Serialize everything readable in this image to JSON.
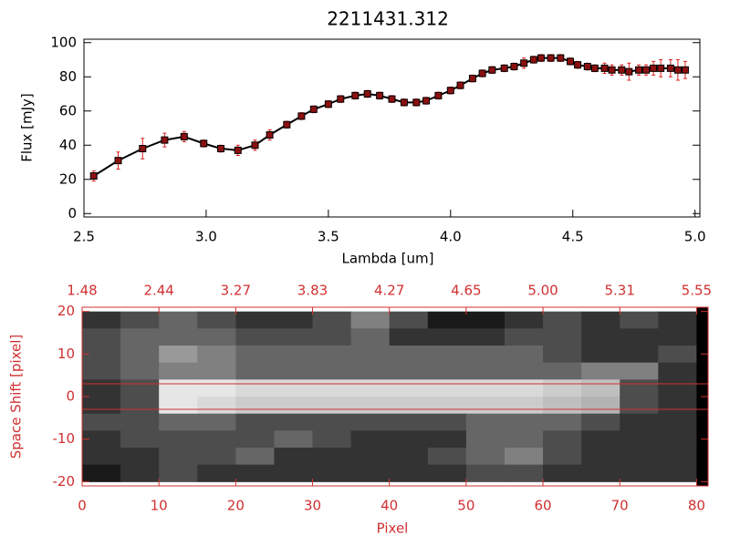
{
  "chart_data": [
    {
      "type": "line",
      "title": "2211431.312",
      "xlabel": "Lambda [um]",
      "ylabel": "Flux [mJy]",
      "x": [
        2.54,
        2.64,
        2.74,
        2.83,
        2.91,
        2.99,
        3.06,
        3.13,
        3.2,
        3.26,
        3.33,
        3.39,
        3.44,
        3.5,
        3.55,
        3.61,
        3.66,
        3.71,
        3.76,
        3.81,
        3.86,
        3.9,
        3.95,
        4.0,
        4.04,
        4.09,
        4.13,
        4.17,
        4.22,
        4.26,
        4.3,
        4.34,
        4.37,
        4.41,
        4.45,
        4.49,
        4.52,
        4.56,
        4.59,
        4.63,
        4.66,
        4.7,
        4.73,
        4.77,
        4.8,
        4.83,
        4.86,
        4.9,
        4.93,
        4.96
      ],
      "series": [
        {
          "name": "Flux",
          "color": "#000000",
          "marker_color": "#8b1010",
          "error_color": "#e02020",
          "values": [
            22,
            31,
            38,
            43,
            45,
            41,
            38,
            37,
            40,
            46,
            52,
            57,
            61,
            64,
            67,
            69,
            70,
            69,
            67,
            65,
            65,
            66,
            69,
            72,
            75,
            79,
            82,
            84,
            85,
            86,
            88,
            90,
            91,
            91,
            91,
            89,
            87,
            86,
            85,
            85,
            84,
            84,
            83,
            84,
            84,
            85,
            85,
            85,
            84,
            84
          ],
          "errors": [
            3,
            5,
            6,
            4,
            3,
            2,
            2,
            3,
            3,
            3,
            2,
            2,
            2,
            2,
            2,
            2,
            2,
            2,
            2,
            2,
            2,
            2,
            2,
            2,
            2,
            2,
            2,
            2,
            2,
            2,
            3,
            2,
            2,
            2,
            2,
            2,
            2,
            2,
            2,
            3,
            3,
            3,
            5,
            3,
            3,
            4,
            5,
            5,
            6,
            5
          ]
        }
      ],
      "xlim": [
        2.5,
        5.02
      ],
      "ylim": [
        -2,
        102
      ],
      "xticks": [
        2.5,
        {
          "value": 3,
          "label": "3.0"
        },
        3.5,
        {
          "value": 4,
          "label": "4.0"
        },
        4.5,
        {
          "value": 5,
          "label": "5.0"
        }
      ],
      "yticks": [
        0,
        20,
        40,
        60,
        80,
        100
      ]
    },
    {
      "type": "image",
      "xlabel": "Pixel",
      "ylabel": "Space Shift [pixel]",
      "color": "#d03030",
      "xlim": [
        0,
        81.5
      ],
      "ylim": [
        -21,
        21
      ],
      "xticks": [
        0,
        10,
        20,
        30,
        40,
        50,
        60,
        70,
        80
      ],
      "x2ticks": [
        {
          "value": 0,
          "label": "1.48"
        },
        {
          "value": 10,
          "label": "2.44"
        },
        {
          "value": 20,
          "label": "3.27"
        },
        {
          "value": 30,
          "label": "3.83"
        },
        {
          "value": 40,
          "label": "4.27"
        },
        {
          "value": 50,
          "label": "4.65"
        },
        {
          "value": 60,
          "label": "5.00"
        },
        {
          "value": 70,
          "label": "5.31"
        },
        {
          "value": 80,
          "label": "5.55"
        }
      ],
      "yticks": [
        -20,
        -10,
        0,
        10,
        20
      ],
      "aperture": [
        -3,
        3
      ],
      "image_x": [
        0,
        5,
        10,
        15,
        20,
        25,
        30,
        35,
        40,
        45,
        50,
        55,
        60,
        65,
        70,
        75,
        80
      ],
      "image_y": [
        20,
        16,
        12,
        8,
        4,
        0,
        -4,
        -8,
        -12,
        -16,
        -20
      ],
      "image": [
        [
          0.2,
          0.3,
          0.4,
          0.3,
          0.2,
          0.2,
          0.3,
          0.5,
          0.3,
          0.1,
          0.1,
          0.2,
          0.3,
          0.2,
          0.3,
          0.2
        ],
        [
          0.3,
          0.4,
          0.4,
          0.4,
          0.3,
          0.3,
          0.3,
          0.4,
          0.2,
          0.2,
          0.2,
          0.3,
          0.3,
          0.2,
          0.2,
          0.2
        ],
        [
          0.3,
          0.4,
          0.6,
          0.5,
          0.4,
          0.4,
          0.4,
          0.4,
          0.4,
          0.4,
          0.4,
          0.4,
          0.3,
          0.2,
          0.2,
          0.3
        ],
        [
          0.3,
          0.4,
          0.5,
          0.5,
          0.4,
          0.4,
          0.4,
          0.4,
          0.4,
          0.4,
          0.4,
          0.4,
          0.4,
          0.5,
          0.5,
          0.2
        ],
        [
          0.2,
          0.3,
          0.9,
          0.9,
          0.85,
          0.85,
          0.85,
          0.85,
          0.85,
          0.85,
          0.85,
          0.85,
          0.8,
          0.75,
          0.3,
          0.2
        ],
        [
          0.2,
          0.3,
          0.9,
          0.85,
          0.8,
          0.8,
          0.8,
          0.8,
          0.8,
          0.8,
          0.8,
          0.8,
          0.75,
          0.7,
          0.3,
          0.2
        ],
        [
          0.3,
          0.3,
          0.4,
          0.4,
          0.3,
          0.3,
          0.3,
          0.3,
          0.3,
          0.3,
          0.4,
          0.4,
          0.4,
          0.3,
          0.2,
          0.2
        ],
        [
          0.2,
          0.3,
          0.3,
          0.3,
          0.3,
          0.4,
          0.3,
          0.2,
          0.2,
          0.2,
          0.4,
          0.4,
          0.3,
          0.2,
          0.2,
          0.2
        ],
        [
          0.2,
          0.2,
          0.3,
          0.3,
          0.4,
          0.2,
          0.2,
          0.2,
          0.2,
          0.3,
          0.4,
          0.5,
          0.3,
          0.2,
          0.2,
          0.2
        ],
        [
          0.1,
          0.2,
          0.3,
          0.2,
          0.2,
          0.2,
          0.2,
          0.2,
          0.2,
          0.2,
          0.3,
          0.3,
          0.2,
          0.2,
          0.2,
          0.2
        ]
      ]
    }
  ]
}
